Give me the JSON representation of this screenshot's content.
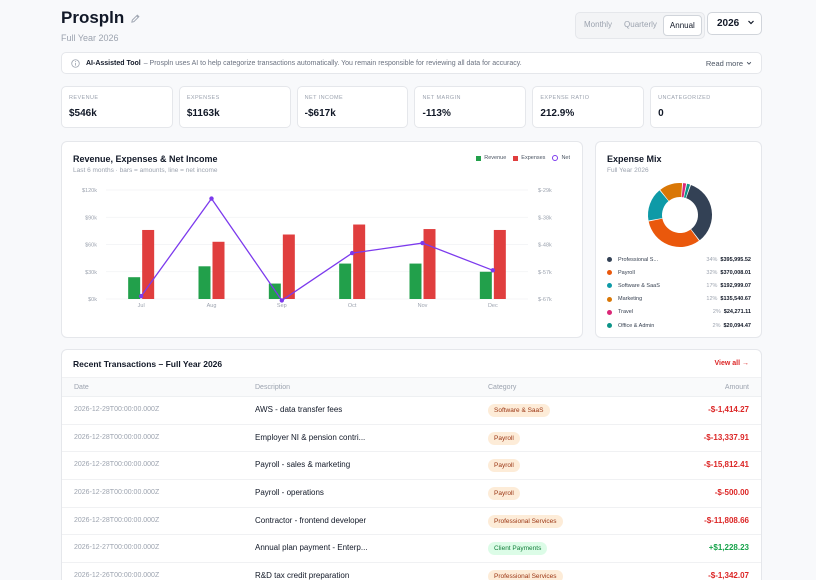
{
  "header": {
    "title": "Prospln",
    "subtitle": "Full Year 2026",
    "period_options": [
      "Monthly",
      "Quarterly",
      "Annual"
    ],
    "active_period": "Annual",
    "year": "2026"
  },
  "banner": {
    "title": "AI-Assisted Tool",
    "text": "– Prospln uses AI to help categorize transactions automatically. You remain responsible for reviewing all data for accuracy.",
    "read_more": "Read more"
  },
  "kpis": [
    {
      "label": "REVENUE",
      "value": "$546k"
    },
    {
      "label": "EXPENSES",
      "value": "$1163k"
    },
    {
      "label": "NET INCOME",
      "value": "-$617k"
    },
    {
      "label": "NET MARGIN",
      "value": "-113%"
    },
    {
      "label": "EXPENSE RATIO",
      "value": "212.9%"
    },
    {
      "label": "UNCATEGORIZED",
      "value": "0"
    }
  ],
  "main_chart": {
    "title": "Revenue, Expenses & Net Income",
    "subtitle": "Last 6 months · bars = amounts, line = net income",
    "legend": [
      "Revenue",
      "Expenses",
      "Net"
    ]
  },
  "chart_data": {
    "type": "bar",
    "categories": [
      "Jul",
      "Aug",
      "Sep",
      "Oct",
      "Nov",
      "Dec"
    ],
    "series": [
      {
        "name": "Revenue",
        "type": "bar",
        "axis": "left",
        "color": "#22a04b",
        "values": [
          24000,
          36000,
          17000,
          39000,
          39000,
          30000
        ]
      },
      {
        "name": "Expenses",
        "type": "bar",
        "axis": "left",
        "color": "#e03e3e",
        "values": [
          76000,
          63000,
          71000,
          82000,
          77000,
          76000
        ]
      },
      {
        "name": "Net",
        "type": "line",
        "axis": "right",
        "color": "#7c3aed",
        "values": [
          -66000,
          -32000,
          -67500,
          -51000,
          -47500,
          -57000
        ]
      }
    ],
    "left_ticks": [
      "$0k",
      "$30k",
      "$60k",
      "$90k",
      "$120k"
    ],
    "left_ylim": [
      0,
      120000
    ],
    "right_ticks": [
      "$-67k",
      "$-57k",
      "$-48k",
      "$-38k",
      "$-29k"
    ],
    "right_ylim": [
      -67000,
      -29000
    ],
    "legend_position": "top-right"
  },
  "expense_mix": {
    "title": "Expense Mix",
    "subtitle": "Full Year 2026",
    "items": [
      {
        "name": "Professional S...",
        "pct": "34%",
        "amount": "$395,995.52",
        "value": 34,
        "color": "#334155"
      },
      {
        "name": "Payroll",
        "pct": "32%",
        "amount": "$370,008.01",
        "value": 32,
        "color": "#ea580c"
      },
      {
        "name": "Software & SaaS",
        "pct": "17%",
        "amount": "$192,999.07",
        "value": 17,
        "color": "#0e9aa7"
      },
      {
        "name": "Marketing",
        "pct": "12%",
        "amount": "$135,540.67",
        "value": 12,
        "color": "#d97706"
      },
      {
        "name": "Travel",
        "pct": "2%",
        "amount": "$24,271.11",
        "value": 2,
        "color": "#db2777"
      },
      {
        "name": "Office & Admin",
        "pct": "2%",
        "amount": "$20,094.47",
        "value": 2,
        "color": "#0d9488"
      }
    ]
  },
  "transactions": {
    "title": "Recent Transactions – Full Year 2026",
    "view_all": "View all →",
    "columns": [
      "Date",
      "Description",
      "Category",
      "Amount"
    ],
    "rows": [
      {
        "date": "2026-12-29T00:00:00.000Z",
        "description": "AWS - data transfer fees",
        "category": "Software & SaaS",
        "amount": "-$-1,414.27",
        "cat_style": "orange",
        "sign": "neg"
      },
      {
        "date": "2026-12-28T00:00:00.000Z",
        "description": "Employer NI & pension contri...",
        "category": "Payroll",
        "amount": "-$-13,337.91",
        "cat_style": "orange",
        "sign": "neg"
      },
      {
        "date": "2026-12-28T00:00:00.000Z",
        "description": "Payroll - sales & marketing",
        "category": "Payroll",
        "amount": "-$-15,812.41",
        "cat_style": "orange",
        "sign": "neg"
      },
      {
        "date": "2026-12-28T00:00:00.000Z",
        "description": "Payroll - operations",
        "category": "Payroll",
        "amount": "-$-500.00",
        "cat_style": "orange",
        "sign": "neg"
      },
      {
        "date": "2026-12-28T00:00:00.000Z",
        "description": "Contractor - frontend developer",
        "category": "Professional Services",
        "amount": "-$-11,808.66",
        "cat_style": "orange",
        "sign": "neg"
      },
      {
        "date": "2026-12-27T00:00:00.000Z",
        "description": "Annual plan payment - Enterp...",
        "category": "Client Payments",
        "amount": "+$1,228.23",
        "cat_style": "green",
        "sign": "pos"
      },
      {
        "date": "2026-12-26T00:00:00.000Z",
        "description": "R&D tax credit preparation",
        "category": "Professional Services",
        "amount": "-$-1,342.07",
        "cat_style": "orange",
        "sign": "neg"
      }
    ]
  }
}
